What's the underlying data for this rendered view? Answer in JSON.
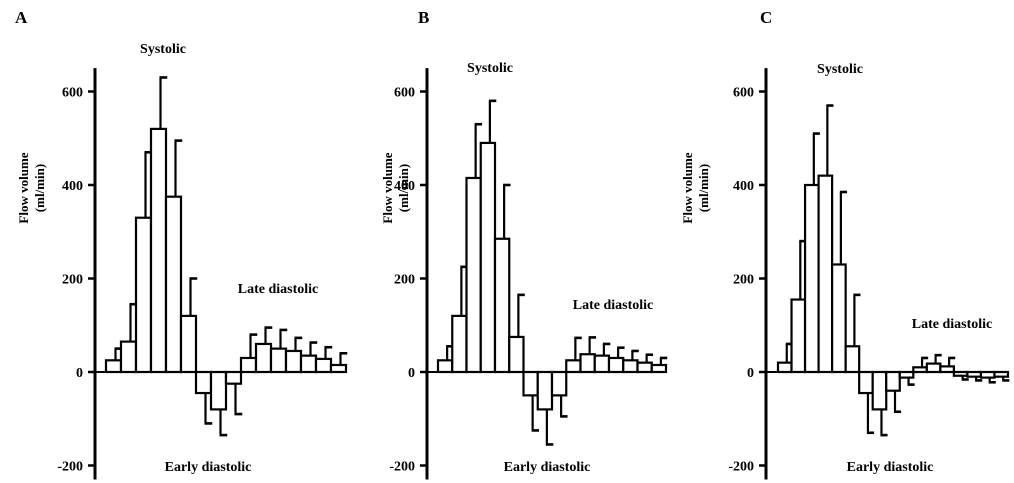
{
  "chart_data": [
    {
      "type": "bar",
      "panel_label": "A",
      "ylabel_line1": "Flow volume",
      "ylabel_line2": "(ml/min)",
      "yticks": [
        600,
        400,
        200,
        0,
        -200
      ],
      "ylim": [
        -230,
        650
      ],
      "annotations": {
        "systolic": "Systolic",
        "late": "Late diastolic",
        "early": "Early diastolic"
      },
      "values": [
        25,
        65,
        330,
        520,
        375,
        120,
        -45,
        -80,
        -25,
        30,
        60,
        50,
        45,
        35,
        28,
        15
      ],
      "errors": [
        25,
        80,
        140,
        110,
        120,
        80,
        65,
        55,
        65,
        50,
        35,
        40,
        28,
        28,
        25,
        25
      ]
    },
    {
      "type": "bar",
      "panel_label": "B",
      "ylabel_line1": "Flow volume",
      "ylabel_line2": "(ml/min)",
      "yticks": [
        600,
        400,
        200,
        0,
        -200
      ],
      "ylim": [
        -230,
        650
      ],
      "annotations": {
        "systolic": "Systolic",
        "late": "Late diastolic",
        "early": "Early diastolic"
      },
      "values": [
        25,
        120,
        415,
        490,
        285,
        75,
        -50,
        -80,
        -50,
        25,
        38,
        35,
        30,
        25,
        20,
        15
      ],
      "errors": [
        30,
        105,
        115,
        90,
        115,
        90,
        75,
        75,
        45,
        48,
        36,
        25,
        22,
        20,
        17,
        15
      ]
    },
    {
      "type": "bar",
      "panel_label": "C",
      "ylabel_line1": "Flow volume",
      "ylabel_line2": "(ml/min)",
      "yticks": [
        600,
        400,
        200,
        0,
        -200
      ],
      "ylim": [
        -230,
        650
      ],
      "annotations": {
        "systolic": "Systolic",
        "late": "Late diastolic",
        "early": "Early diastolic"
      },
      "values": [
        20,
        155,
        400,
        420,
        230,
        55,
        -45,
        -80,
        -40,
        -12,
        10,
        18,
        12,
        -8,
        -10,
        -12,
        -10
      ],
      "errors": [
        40,
        125,
        110,
        150,
        155,
        110,
        85,
        55,
        45,
        15,
        20,
        18,
        18,
        8,
        8,
        10,
        8
      ]
    }
  ]
}
